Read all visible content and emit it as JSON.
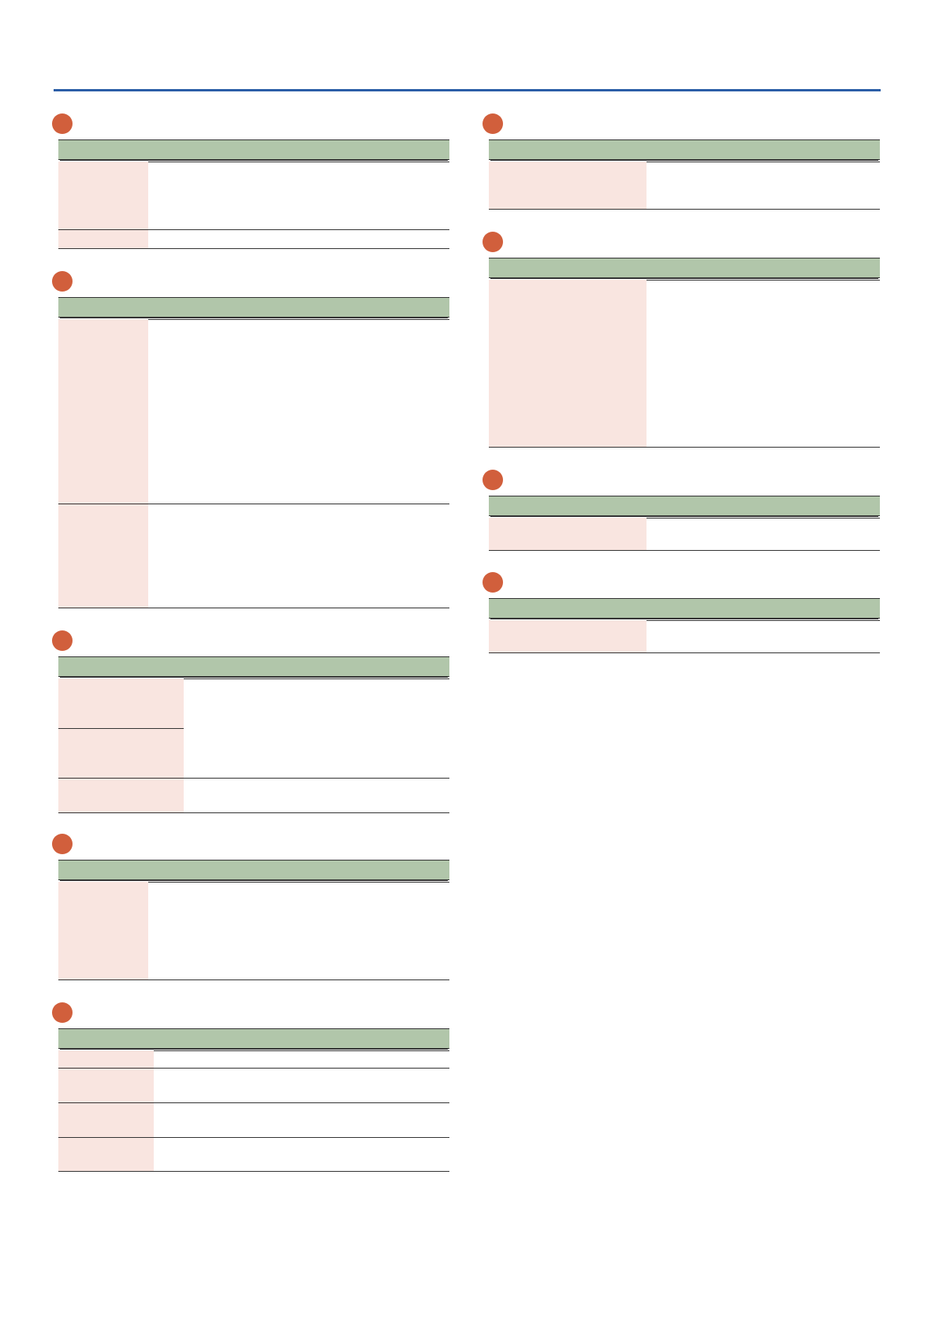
{
  "page": {
    "accent_color": "#2b5ea7",
    "badge_color": "#d15f3c",
    "header_color": "#b1c6aa",
    "label_cell_color": "#f9e5e0"
  },
  "sections": [
    {
      "id": "left-1",
      "badge_icon": "circle-badge-icon",
      "title": "",
      "rows": 2
    },
    {
      "id": "left-2",
      "badge_icon": "circle-badge-icon",
      "title": "",
      "rows": 2
    },
    {
      "id": "left-3",
      "badge_icon": "circle-badge-icon",
      "title": "",
      "rows": 3
    },
    {
      "id": "left-4",
      "badge_icon": "circle-badge-icon",
      "title": "",
      "rows": 1
    },
    {
      "id": "left-5",
      "badge_icon": "circle-badge-icon",
      "title": "",
      "rows": 4
    },
    {
      "id": "right-1",
      "badge_icon": "circle-badge-icon",
      "title": "",
      "rows": 1
    },
    {
      "id": "right-2",
      "badge_icon": "circle-badge-icon",
      "title": "",
      "rows": 1
    },
    {
      "id": "right-3",
      "badge_icon": "circle-badge-icon",
      "title": "",
      "rows": 1
    },
    {
      "id": "right-4",
      "badge_icon": "circle-badge-icon",
      "title": "",
      "rows": 1
    }
  ]
}
